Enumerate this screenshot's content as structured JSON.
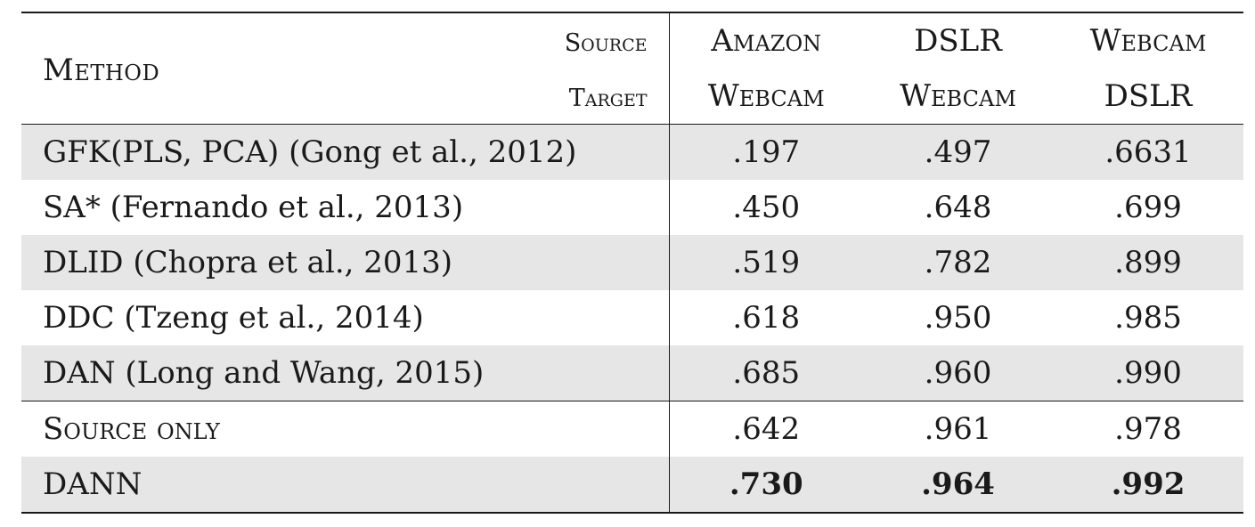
{
  "header": {
    "method_label": "Method",
    "source_label": "Source",
    "target_label": "Target",
    "columns": [
      {
        "source": "Amazon",
        "target": "Webcam"
      },
      {
        "source": "DSLR",
        "target": "Webcam"
      },
      {
        "source": "Webcam",
        "target": "DSLR"
      }
    ]
  },
  "rows": [
    {
      "method": "GFK(PLS, PCA) (Gong et al., 2012)",
      "values": [
        ".197",
        ".497",
        ".6631"
      ]
    },
    {
      "method": "SA* (Fernando et al., 2013)",
      "values": [
        ".450",
        ".648",
        ".699"
      ]
    },
    {
      "method": "DLID (Chopra et al., 2013)",
      "values": [
        ".519",
        ".782",
        ".899"
      ]
    },
    {
      "method": "DDC (Tzeng et al., 2014)",
      "values": [
        ".618",
        ".950",
        ".985"
      ]
    },
    {
      "method": "DAN (Long and Wang, 2015)",
      "values": [
        ".685",
        ".960",
        ".990"
      ]
    },
    {
      "method": "Source only",
      "values": [
        ".642",
        ".961",
        ".978"
      ]
    },
    {
      "method": "DANN",
      "values": [
        ".730",
        ".964",
        ".992"
      ]
    }
  ],
  "colors": {
    "shade": "#e6e6e6",
    "rule": "#1a1a1a"
  }
}
